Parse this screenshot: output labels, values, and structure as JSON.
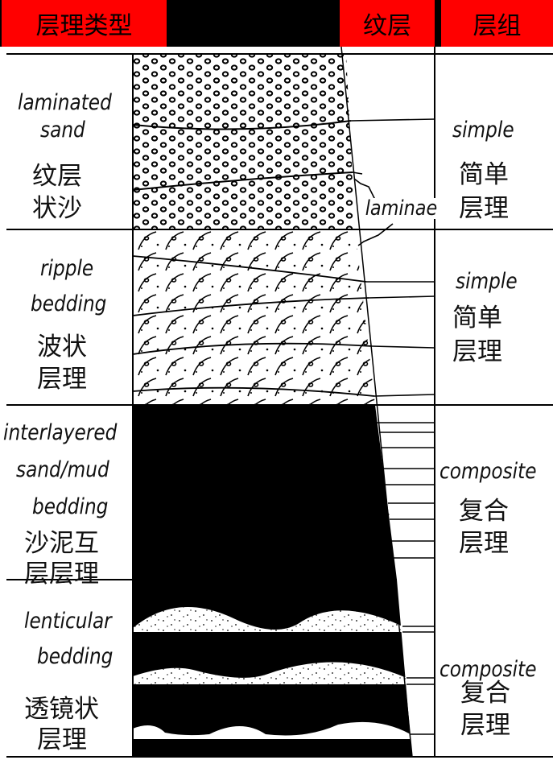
{
  "header": {
    "col1": "层理类型",
    "col2": "纹层",
    "col3": "层组"
  },
  "sections": [
    {
      "type_en": [
        "laminated",
        "sand"
      ],
      "type_cn": [
        "纹层",
        "状沙"
      ],
      "set_en": "simple",
      "set_cn": [
        "简单",
        "层理"
      ]
    },
    {
      "type_en": [
        "ripple",
        "bedding"
      ],
      "type_cn": [
        "波状",
        "层理"
      ],
      "set_en": "simple",
      "set_cn": [
        "简单",
        "层理"
      ]
    },
    {
      "type_en": [
        "interlayered",
        "sand/mud",
        "bedding"
      ],
      "type_cn": [
        "沙泥互",
        "层层理"
      ],
      "set_en": "composite",
      "set_cn": [
        "复合",
        "层理"
      ]
    },
    {
      "type_en": [
        "lenticular",
        "bedding"
      ],
      "type_cn": [
        "透镜状",
        "层理"
      ],
      "set_en": "composite",
      "set_cn": [
        "复合",
        "层理"
      ]
    }
  ],
  "annotation": "laminae",
  "colors": {
    "header_red": "#ff0000",
    "ink": "#000000"
  }
}
